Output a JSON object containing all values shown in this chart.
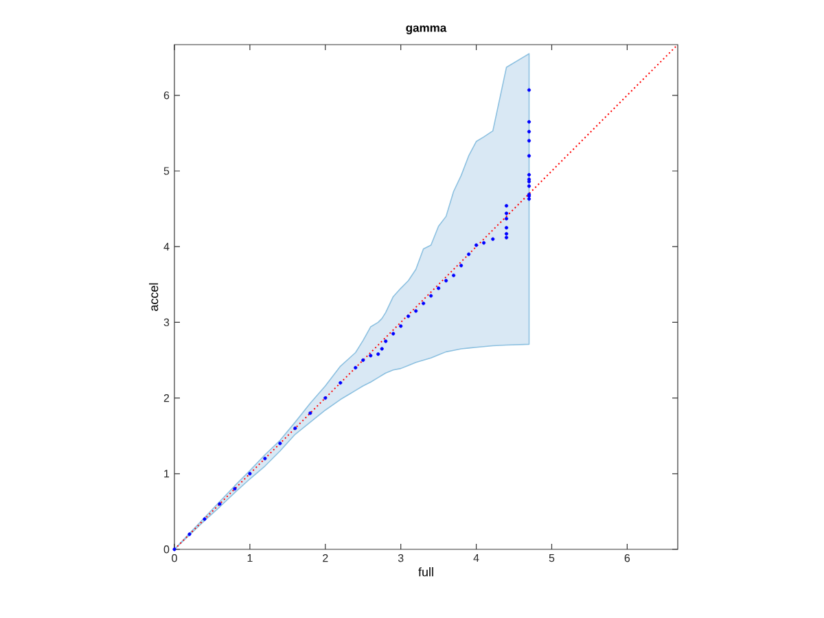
{
  "chart_data": {
    "type": "scatter",
    "title": "gamma",
    "xlabel": "full",
    "ylabel": "accel",
    "xlim": [
      0,
      6.67
    ],
    "ylim": [
      0,
      6.67
    ],
    "xticks": [
      0,
      1,
      2,
      3,
      4,
      5,
      6
    ],
    "yticks": [
      0,
      1,
      2,
      3,
      4,
      5,
      6
    ],
    "grid": false,
    "series": [
      {
        "color": "#0000ff",
        "marker": "circle",
        "x": [
          0,
          0.2,
          0.4,
          0.6,
          0.8,
          1.0,
          1.2,
          1.4,
          1.6,
          1.8,
          2.0,
          2.2,
          2.4,
          2.5,
          2.6,
          2.7,
          2.75,
          2.8,
          2.9,
          3.0,
          3.1,
          3.2,
          3.3,
          3.4,
          3.5,
          3.6,
          3.7,
          3.8,
          3.9,
          4.0,
          4.1,
          4.22,
          4.4,
          4.4,
          4.4,
          4.4,
          4.4,
          4.4,
          4.4,
          4.4,
          4.7,
          4.7,
          4.7,
          4.7,
          4.7,
          4.7,
          4.7,
          4.7,
          4.7,
          4.7,
          4.7,
          4.7,
          4.7
        ],
        "values": [
          0,
          0.2,
          0.4,
          0.6,
          0.8,
          1.0,
          1.2,
          1.4,
          1.6,
          1.8,
          2.0,
          2.2,
          2.4,
          2.5,
          2.56,
          2.58,
          2.65,
          2.75,
          2.85,
          2.95,
          3.08,
          3.15,
          3.25,
          3.35,
          3.45,
          3.55,
          3.62,
          3.75,
          3.9,
          4.02,
          4.05,
          4.1,
          4.54,
          4.44,
          4.37,
          4.25,
          null,
          4.17,
          4.12,
          null,
          6.07,
          5.65,
          5.52,
          5.4,
          null,
          5.2,
          4.95,
          4.89,
          4.86,
          4.8,
          4.69,
          4.67,
          4.63
        ],
        "upper": [
          0,
          0.21,
          0.42,
          0.63,
          0.84,
          1.04,
          1.25,
          1.44,
          1.68,
          1.93,
          2.16,
          2.42,
          2.6,
          2.76,
          2.94,
          3.0,
          3.05,
          3.13,
          3.34,
          3.45,
          3.55,
          3.7,
          3.97,
          4.02,
          4.27,
          4.4,
          4.73,
          4.94,
          5.2,
          5.39,
          5.45,
          5.53,
          6.37,
          6.37,
          6.37,
          6.37,
          6.37,
          6.37,
          6.37,
          6.37,
          6.55,
          6.55,
          6.55,
          6.55,
          6.55,
          6.55,
          6.55,
          6.55,
          6.55,
          6.55,
          6.55,
          6.55,
          6.55
        ],
        "lower": [
          0,
          0.19,
          0.38,
          0.56,
          0.75,
          0.93,
          1.1,
          1.3,
          1.52,
          1.68,
          1.84,
          1.98,
          2.1,
          2.16,
          2.21,
          2.27,
          2.3,
          2.33,
          2.37,
          2.39,
          2.43,
          2.47,
          2.5,
          2.53,
          2.57,
          2.61,
          2.63,
          2.65,
          2.66,
          2.67,
          2.68,
          2.69,
          2.7,
          2.7,
          2.7,
          2.7,
          2.7,
          2.7,
          2.7,
          2.7,
          2.71,
          2.71,
          2.71,
          2.71,
          2.71,
          2.71,
          2.71,
          2.71,
          2.71,
          2.71,
          2.71,
          2.71,
          2.71
        ]
      },
      {
        "type": "line",
        "color": "#ff0000",
        "marker": "none",
        "line_style": "dotted",
        "x": [
          0,
          6.67
        ],
        "values": [
          0,
          6.67
        ]
      }
    ]
  }
}
